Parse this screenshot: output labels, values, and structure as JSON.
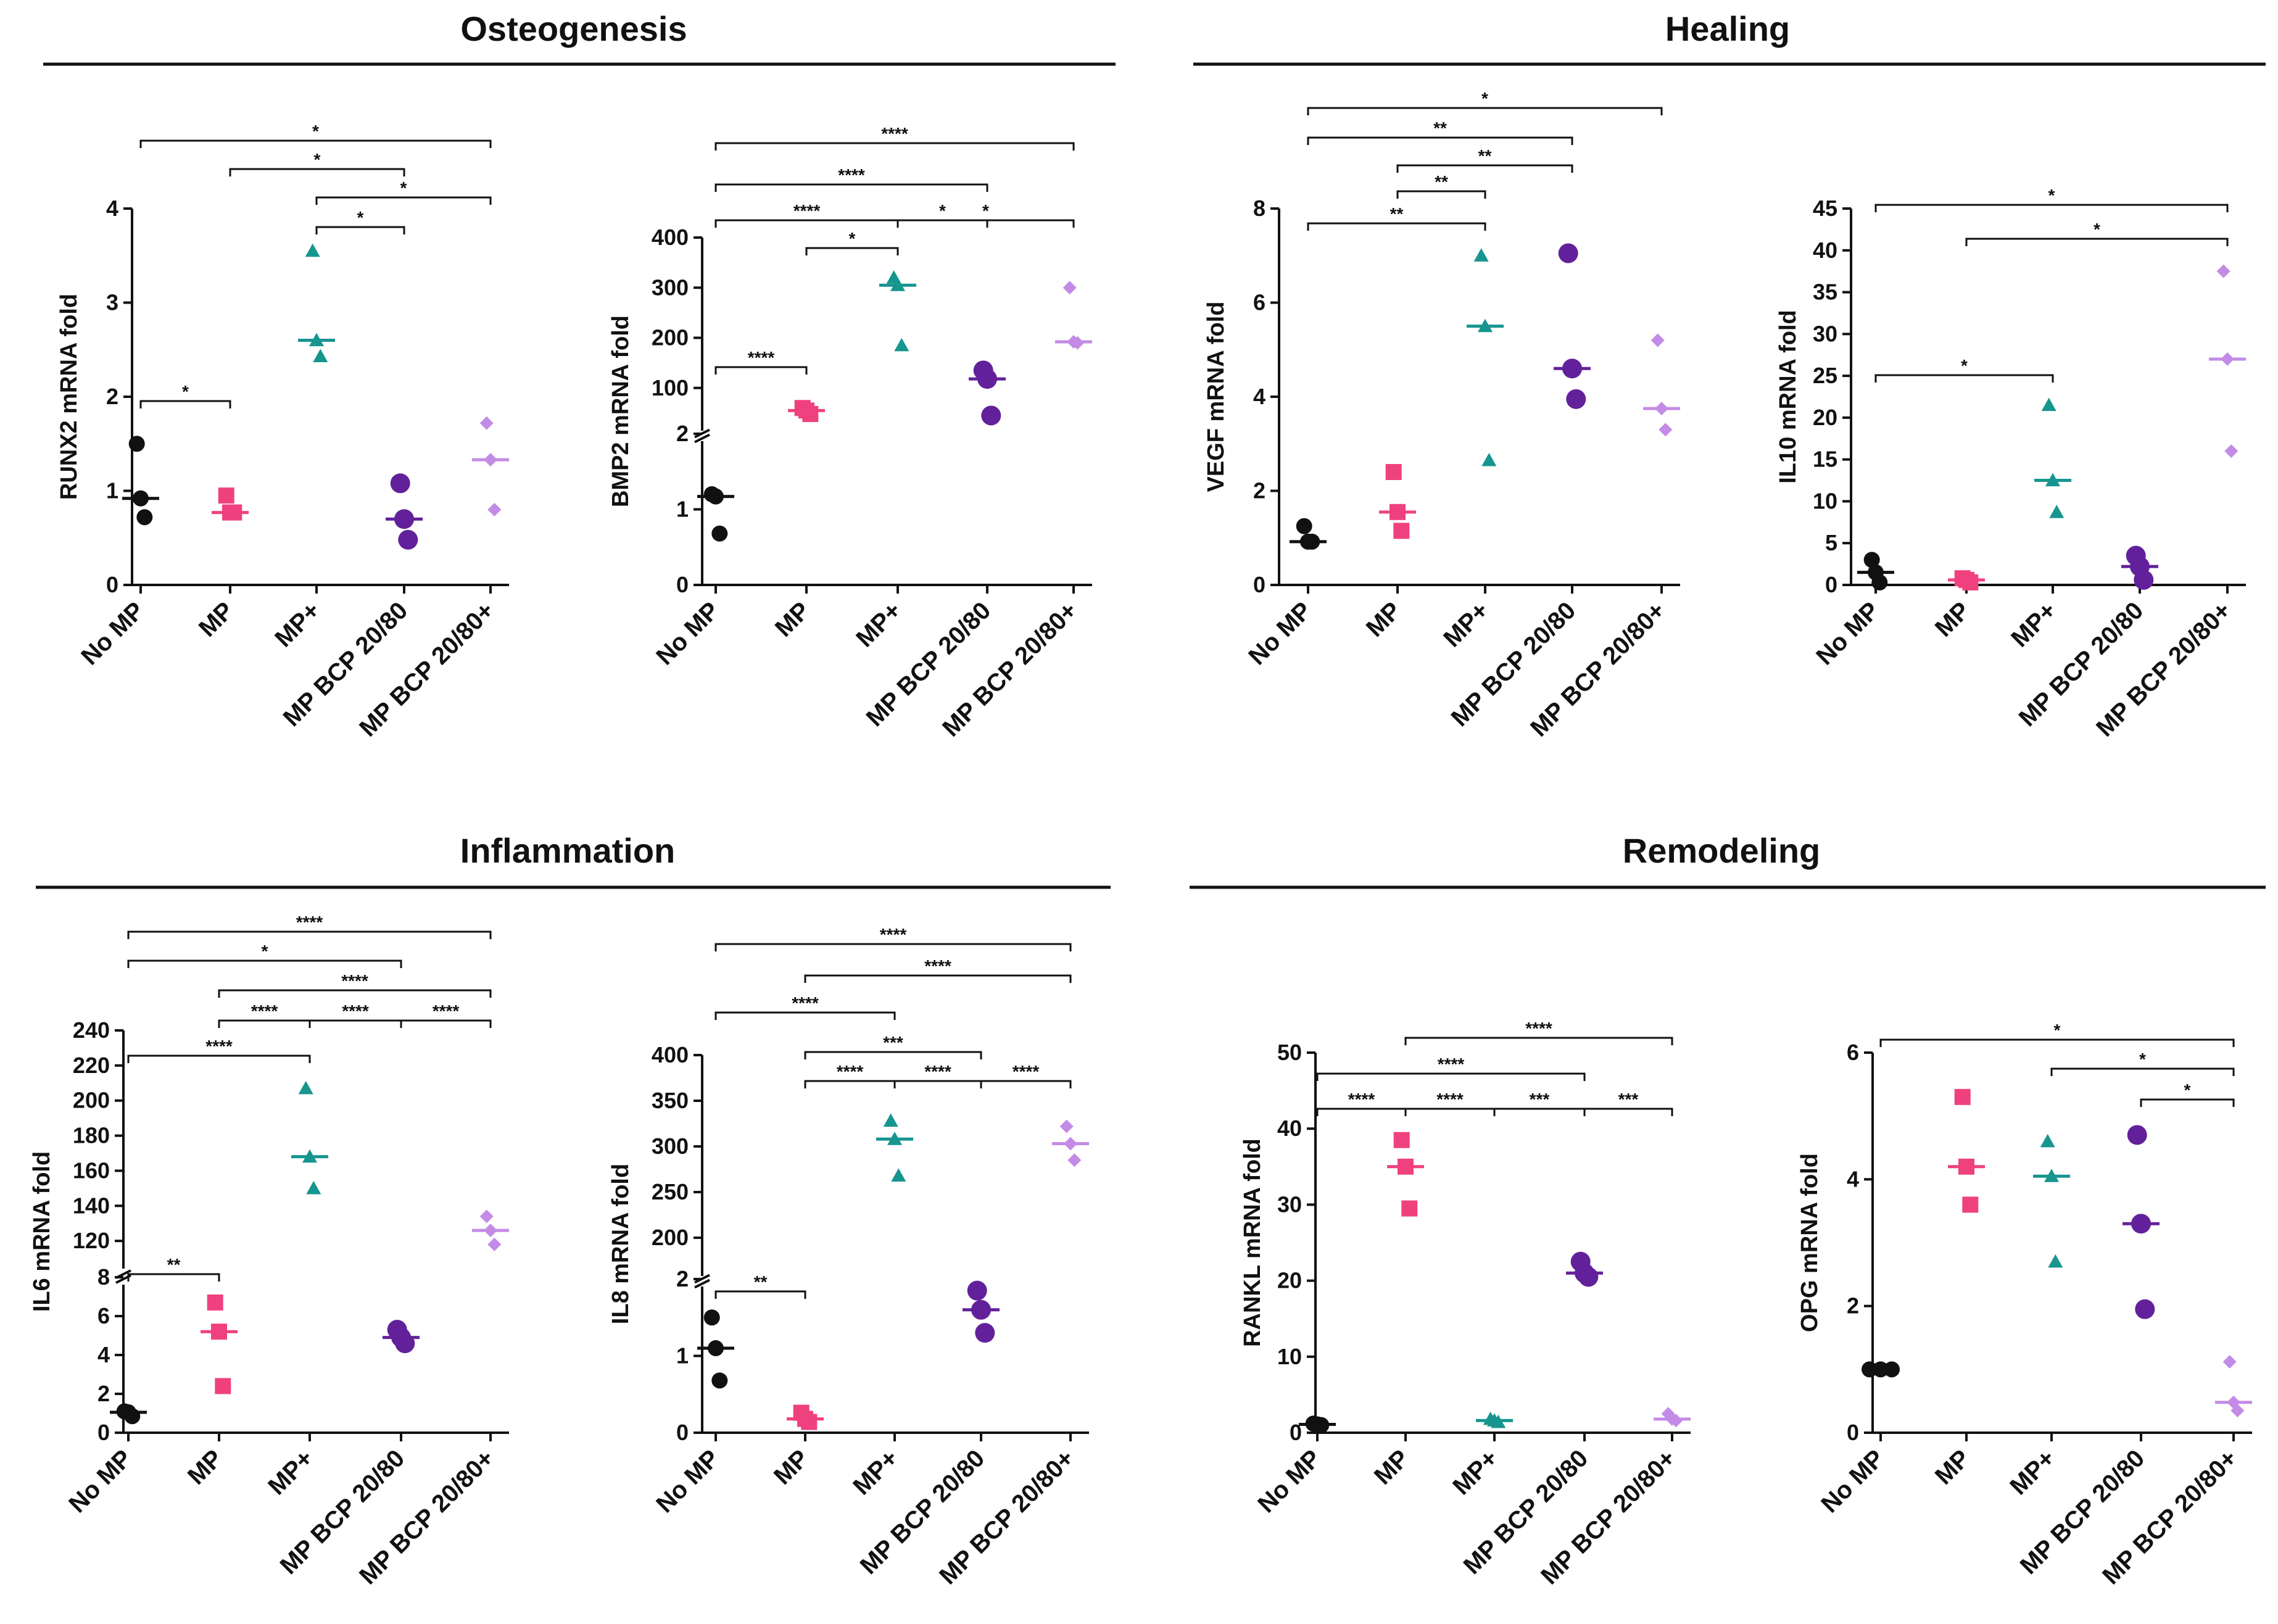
{
  "sections": [
    {
      "title": "Osteogenesis"
    },
    {
      "title": "Healing"
    },
    {
      "title": "Inflammation"
    },
    {
      "title": "Remodeling"
    }
  ],
  "colors": {
    "No MP": "#111111",
    "MP": "#f0417f",
    "MP+": "#17958f",
    "MP BCP 20/80": "#62219a",
    "MP BCP 20/80+": "#c48be6"
  },
  "chart_data": [
    {
      "type": "scatter",
      "section": "Osteogenesis",
      "ylabel": "RUNX2 mRNA fold",
      "categories": [
        "No MP",
        "MP",
        "MP+",
        "MP BCP 20/80",
        "MP BCP 20/80+"
      ],
      "yticks": [
        0,
        1,
        2,
        3,
        4
      ],
      "points": [
        [
          1.5,
          0.92,
          0.72
        ],
        [
          0.95,
          0.77,
          0.77
        ],
        [
          3.55,
          2.6,
          2.43
        ],
        [
          1.08,
          0.7,
          0.48
        ],
        [
          1.72,
          1.33,
          0.8
        ]
      ],
      "medians": [
        0.92,
        0.77,
        2.6,
        0.7,
        1.33
      ],
      "significance": [
        {
          "from": "No MP",
          "to": "MP",
          "label": "*"
        },
        {
          "from": "MP+",
          "to": "MP BCP 20/80",
          "label": "*"
        },
        {
          "from": "MP+",
          "to": "MP BCP 20/80+",
          "label": "*"
        },
        {
          "from": "MP",
          "to": "MP BCP 20/80",
          "label": "*"
        },
        {
          "from": "No MP",
          "to": "MP BCP 20/80+",
          "label": "*"
        }
      ]
    },
    {
      "type": "scatter",
      "section": "Osteogenesis",
      "ylabel": "BMP2 mRNA fold",
      "categories": [
        "No MP",
        "MP",
        "MP+",
        "MP BCP 20/80",
        "MP BCP 20/80+"
      ],
      "yticks": [
        0,
        1,
        2,
        100,
        200,
        300,
        400
      ],
      "axis_break": true,
      "points": [
        [
          1.2,
          1.17,
          0.68
        ],
        [
          60,
          55,
          48
        ],
        [
          320,
          305,
          185
        ],
        [
          135,
          118,
          45
        ],
        [
          300,
          192,
          190
        ]
      ],
      "medians": [
        1.17,
        55,
        305,
        118,
        192
      ],
      "significance": [
        {
          "from": "No MP",
          "to": "MP",
          "label": "****"
        },
        {
          "from": "MP",
          "to": "MP+",
          "label": "*"
        },
        {
          "from": "MP+",
          "to": "MP BCP 20/80",
          "label": "*"
        },
        {
          "from": "No MP",
          "to": "MP+",
          "label": "****"
        },
        {
          "from": "MP+",
          "to": "MP BCP 20/80+",
          "label": "*"
        },
        {
          "from": "No MP",
          "to": "MP BCP 20/80",
          "label": "****"
        },
        {
          "from": "No MP",
          "to": "MP BCP 20/80+",
          "label": "****"
        }
      ]
    },
    {
      "type": "scatter",
      "section": "Healing",
      "ylabel": "VEGF mRNA fold",
      "categories": [
        "No MP",
        "MP",
        "MP+",
        "MP BCP 20/80",
        "MP BCP 20/80+"
      ],
      "yticks": [
        0,
        2,
        4,
        6,
        8
      ],
      "points": [
        [
          1.25,
          0.92,
          0.92
        ],
        [
          2.4,
          1.55,
          1.15
        ],
        [
          7.0,
          5.5,
          2.65
        ],
        [
          7.05,
          4.6,
          3.95
        ],
        [
          5.2,
          3.75,
          3.3
        ]
      ],
      "medians": [
        0.92,
        1.55,
        5.5,
        4.6,
        3.75
      ],
      "significance": [
        {
          "from": "No MP",
          "to": "MP+",
          "label": "**"
        },
        {
          "from": "MP",
          "to": "MP+",
          "label": "**"
        },
        {
          "from": "MP",
          "to": "MP BCP 20/80",
          "label": "**"
        },
        {
          "from": "No MP",
          "to": "MP BCP 20/80",
          "label": "**"
        },
        {
          "from": "No MP",
          "to": "MP BCP 20/80+",
          "label": "*"
        }
      ]
    },
    {
      "type": "scatter",
      "section": "Healing",
      "ylabel": "IL10 mRNA fold",
      "categories": [
        "No MP",
        "MP",
        "MP+",
        "MP BCP 20/80",
        "MP BCP 20/80+"
      ],
      "yticks": [
        0,
        5,
        10,
        15,
        20,
        25,
        30,
        35,
        40,
        45
      ],
      "points": [
        [
          3.0,
          1.5,
          0.3
        ],
        [
          0.8,
          0.6,
          0.3
        ],
        [
          21.5,
          12.5,
          8.7
        ],
        [
          3.5,
          2.2,
          0.6
        ],
        [
          37.5,
          27,
          16
        ]
      ],
      "medians": [
        1.5,
        0.6,
        12.5,
        2.2,
        27
      ],
      "significance": [
        {
          "from": "No MP",
          "to": "MP+",
          "label": "*"
        },
        {
          "from": "MP",
          "to": "MP BCP 20/80+",
          "label": "*"
        },
        {
          "from": "No MP",
          "to": "MP BCP 20/80+",
          "label": "*"
        }
      ]
    },
    {
      "type": "scatter",
      "section": "Inflammation",
      "ylabel": "IL6 mRNA fold",
      "categories": [
        "No MP",
        "MP",
        "MP+",
        "MP BCP 20/80",
        "MP BCP 20/80+"
      ],
      "yticks": [
        0,
        2,
        4,
        6,
        8,
        120,
        140,
        160,
        180,
        200,
        220,
        240
      ],
      "axis_break": true,
      "points": [
        [
          1.1,
          1.05,
          0.85
        ],
        [
          6.7,
          5.2,
          2.4
        ],
        [
          207,
          168,
          150
        ],
        [
          5.3,
          4.9,
          4.6
        ],
        [
          134,
          126,
          118
        ]
      ],
      "medians": [
        1.05,
        5.2,
        168,
        4.9,
        126
      ],
      "significance": [
        {
          "from": "No MP",
          "to": "MP",
          "label": "**"
        },
        {
          "from": "No MP",
          "to": "MP+",
          "label": "****"
        },
        {
          "from": "MP",
          "to": "MP+",
          "label": "****"
        },
        {
          "from": "MP+",
          "to": "MP BCP 20/80",
          "label": "****"
        },
        {
          "from": "MP BCP 20/80",
          "to": "MP BCP 20/80+",
          "label": "****"
        },
        {
          "from": "MP",
          "to": "MP BCP 20/80+",
          "label": "****"
        },
        {
          "from": "No MP",
          "to": "MP BCP 20/80",
          "label": "*"
        },
        {
          "from": "No MP",
          "to": "MP BCP 20/80+",
          "label": "****"
        }
      ]
    },
    {
      "type": "scatter",
      "section": "Inflammation",
      "ylabel": "IL8 mRNA fold",
      "categories": [
        "No MP",
        "MP",
        "MP+",
        "MP BCP 20/80",
        "MP BCP 20/80+"
      ],
      "yticks": [
        0,
        1,
        2,
        200,
        250,
        300,
        350,
        400
      ],
      "axis_break": true,
      "points": [
        [
          1.5,
          1.1,
          0.68
        ],
        [
          0.26,
          0.18,
          0.14
        ],
        [
          328,
          308,
          268
        ],
        [
          1.85,
          1.6,
          1.3
        ],
        [
          322,
          303,
          285
        ]
      ],
      "medians": [
        1.1,
        0.18,
        308,
        1.6,
        303
      ],
      "significance": [
        {
          "from": "No MP",
          "to": "MP",
          "label": "**"
        },
        {
          "from": "MP",
          "to": "MP+",
          "label": "****"
        },
        {
          "from": "MP+",
          "to": "MP BCP 20/80",
          "label": "****"
        },
        {
          "from": "MP BCP 20/80",
          "to": "MP BCP 20/80+",
          "label": "****"
        },
        {
          "from": "MP",
          "to": "MP BCP 20/80",
          "label": "***"
        },
        {
          "from": "No MP",
          "to": "MP+",
          "label": "****"
        },
        {
          "from": "MP",
          "to": "MP BCP 20/80+",
          "label": "****"
        },
        {
          "from": "No MP",
          "to": "MP BCP 20/80+",
          "label": "****"
        }
      ]
    },
    {
      "type": "scatter",
      "section": "Remodeling",
      "ylabel": "RANKL mRNA fold",
      "categories": [
        "No MP",
        "MP",
        "MP+",
        "MP BCP 20/80",
        "MP BCP 20/80+"
      ],
      "yticks": [
        0,
        10,
        20,
        30,
        40,
        50
      ],
      "points": [
        [
          1.2,
          1.1,
          1.0
        ],
        [
          38.5,
          35,
          29.5
        ],
        [
          1.8,
          1.6,
          1.4
        ],
        [
          22.5,
          21,
          20.5
        ],
        [
          2.5,
          1.8,
          1.6
        ]
      ],
      "medians": [
        1.1,
        35,
        1.6,
        21,
        1.8
      ],
      "significance": [
        {
          "from": "No MP",
          "to": "MP",
          "label": "****"
        },
        {
          "from": "MP",
          "to": "MP+",
          "label": "****"
        },
        {
          "from": "MP+",
          "to": "MP BCP 20/80",
          "label": "***"
        },
        {
          "from": "MP BCP 20/80",
          "to": "MP BCP 20/80+",
          "label": "***"
        },
        {
          "from": "No MP",
          "to": "MP BCP 20/80",
          "label": "****"
        },
        {
          "from": "MP",
          "to": "MP BCP 20/80+",
          "label": "****"
        }
      ]
    },
    {
      "type": "scatter",
      "section": "Remodeling",
      "ylabel": "OPG mRNA fold",
      "categories": [
        "No MP",
        "MP",
        "MP+",
        "MP BCP 20/80",
        "MP BCP 20/80+"
      ],
      "yticks": [
        0,
        2,
        4,
        6
      ],
      "points": [
        [
          1.0,
          1.0,
          1.0
        ],
        [
          5.3,
          4.2,
          3.6
        ],
        [
          4.6,
          4.05,
          2.7
        ],
        [
          4.7,
          3.3,
          1.95
        ],
        [
          1.12,
          0.48,
          0.35
        ]
      ],
      "medians": [
        1.0,
        4.2,
        4.05,
        3.3,
        0.48
      ],
      "significance": [
        {
          "from": "MP BCP 20/80",
          "to": "MP BCP 20/80+",
          "label": "*"
        },
        {
          "from": "MP+",
          "to": "MP BCP 20/80+",
          "label": "*"
        },
        {
          "from": "No MP",
          "to": "MP BCP 20/80+",
          "label": "*"
        }
      ]
    }
  ]
}
